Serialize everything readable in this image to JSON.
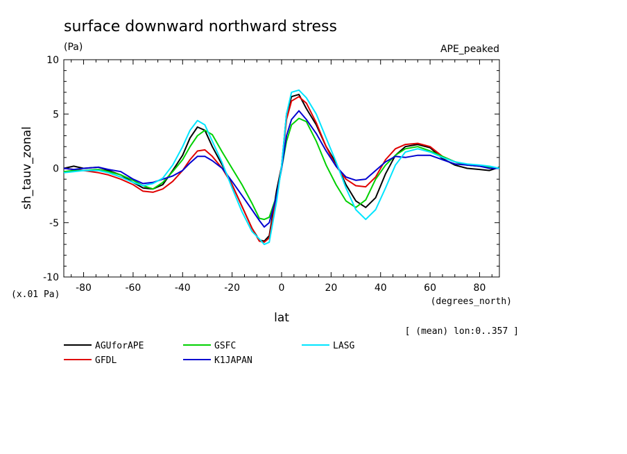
{
  "chart_data": {
    "type": "line",
    "title": "surface downward northward stress",
    "units": "(Pa)",
    "experiment": "APE_peaked",
    "ylabel": "sh_tauv_zonal",
    "xlabel": "lat",
    "x_unit_label": "(degrees_north)",
    "y_scale_note": "(x.01 Pa)",
    "averaging_note": "[ (mean) lon:0..357 ]",
    "xlim": [
      -88,
      88
    ],
    "ylim": [
      -10,
      10
    ],
    "x_ticks": [
      -80,
      -60,
      -40,
      -20,
      0,
      20,
      40,
      60,
      80
    ],
    "x_tick_labels": [
      "-80",
      "-60",
      "-40",
      "-20",
      "0",
      "20",
      "40",
      "60",
      "80"
    ],
    "y_ticks": [
      -10,
      -5,
      0,
      5,
      10
    ],
    "y_tick_labels": [
      "-10",
      "-5",
      "0",
      "5",
      "10"
    ],
    "legend_placement": "bottom",
    "series": [
      {
        "name": "AGUforAPE",
        "color": "#000000",
        "x": [
          -88,
          -84,
          -80,
          -74,
          -70,
          -65,
          -60,
          -56,
          -52,
          -48,
          -44,
          -40,
          -37,
          -34,
          -31,
          -28,
          -24,
          -20,
          -16,
          -12,
          -9,
          -7,
          -5,
          -2,
          0,
          2,
          4,
          7,
          10,
          14,
          18,
          22,
          26,
          30,
          34,
          38,
          42,
          46,
          50,
          55,
          60,
          65,
          70,
          75,
          80,
          84,
          88
        ],
        "y": [
          0,
          0.2,
          0,
          0.1,
          -0.2,
          -0.6,
          -1.3,
          -1.8,
          -1.9,
          -1.5,
          -0.2,
          1.2,
          2.8,
          3.8,
          3.5,
          2.0,
          0.3,
          -1.5,
          -3.5,
          -5.5,
          -6.6,
          -6.7,
          -6.2,
          -2.0,
          0.2,
          5.0,
          6.6,
          6.8,
          5.5,
          4.0,
          2.0,
          0.5,
          -1.5,
          -3.0,
          -3.6,
          -2.7,
          -0.5,
          1.2,
          2.0,
          2.2,
          1.9,
          0.9,
          0.3,
          0,
          -0.1,
          -0.2,
          0.1
        ]
      },
      {
        "name": "GFDL",
        "color": "#e00000",
        "x": [
          -88,
          -84,
          -80,
          -74,
          -70,
          -65,
          -60,
          -56,
          -52,
          -48,
          -44,
          -40,
          -37,
          -34,
          -31,
          -28,
          -24,
          -20,
          -16,
          -12,
          -9,
          -7,
          -5,
          -2,
          0,
          2,
          4,
          7,
          10,
          14,
          18,
          22,
          26,
          30,
          34,
          38,
          42,
          46,
          50,
          55,
          60,
          65,
          70,
          75,
          80,
          84,
          88
        ],
        "y": [
          0,
          -0.1,
          -0.2,
          -0.4,
          -0.6,
          -1.0,
          -1.5,
          -2.1,
          -2.2,
          -1.9,
          -1.2,
          -0.2,
          0.8,
          1.6,
          1.7,
          1.1,
          0,
          -1.5,
          -3.5,
          -5.5,
          -6.7,
          -6.8,
          -6.4,
          -2.5,
          0.2,
          4.5,
          6.2,
          6.6,
          6.0,
          4.2,
          2.0,
          0.2,
          -1.0,
          -1.6,
          -1.7,
          -0.8,
          0.8,
          1.8,
          2.2,
          2.3,
          2.0,
          1.1,
          0.6,
          0.3,
          0.2,
          0.1,
          0
        ]
      },
      {
        "name": "GSFC",
        "color": "#00d000",
        "x": [
          -88,
          -84,
          -80,
          -74,
          -70,
          -65,
          -60,
          -56,
          -52,
          -48,
          -44,
          -40,
          -37,
          -34,
          -31,
          -28,
          -24,
          -20,
          -16,
          -12,
          -9,
          -7,
          -5,
          -2,
          0,
          2,
          4,
          7,
          10,
          14,
          18,
          22,
          26,
          30,
          34,
          38,
          42,
          46,
          50,
          55,
          60,
          65,
          70,
          75,
          80,
          84,
          88
        ],
        "y": [
          -0.3,
          -0.2,
          -0.2,
          -0.1,
          -0.3,
          -0.6,
          -1.1,
          -1.6,
          -1.9,
          -1.3,
          -0.3,
          0.8,
          2.0,
          3.0,
          3.5,
          3.1,
          1.5,
          0,
          -1.5,
          -3.2,
          -4.6,
          -4.7,
          -4.5,
          -2.5,
          0,
          2.5,
          4.0,
          4.6,
          4.3,
          2.5,
          0.3,
          -1.5,
          -3.0,
          -3.6,
          -2.9,
          -1.0,
          0.3,
          1.2,
          1.8,
          2.0,
          1.6,
          1.1,
          0.6,
          0.3,
          0.2,
          0.1,
          0
        ]
      },
      {
        "name": "K1JAPAN",
        "color": "#0000d0",
        "x": [
          -88,
          -84,
          -80,
          -74,
          -70,
          -65,
          -60,
          -56,
          -52,
          -48,
          -44,
          -40,
          -37,
          -34,
          -31,
          -28,
          -24,
          -20,
          -16,
          -12,
          -9,
          -7,
          -5,
          -2,
          0,
          2,
          4,
          7,
          10,
          14,
          18,
          22,
          26,
          30,
          34,
          38,
          42,
          46,
          50,
          55,
          60,
          65,
          70,
          75,
          80,
          84,
          88
        ],
        "y": [
          0,
          -0.1,
          0,
          0.1,
          -0.1,
          -0.3,
          -1.0,
          -1.4,
          -1.3,
          -1.0,
          -0.7,
          -0.2,
          0.5,
          1.1,
          1.1,
          0.7,
          0,
          -1.2,
          -2.5,
          -3.8,
          -4.8,
          -5.4,
          -5.0,
          -2.5,
          0,
          3.0,
          4.5,
          5.3,
          4.5,
          3.2,
          1.6,
          0.2,
          -0.8,
          -1.1,
          -1.0,
          -0.2,
          0.6,
          1.1,
          1.0,
          1.2,
          1.2,
          0.8,
          0.4,
          0.3,
          0.2,
          0,
          0
        ]
      },
      {
        "name": "LASG",
        "color": "#00e5ff",
        "x": [
          -88,
          -84,
          -80,
          -74,
          -70,
          -65,
          -60,
          -56,
          -52,
          -48,
          -44,
          -40,
          -37,
          -34,
          -31,
          -28,
          -24,
          -20,
          -16,
          -12,
          -9,
          -7,
          -5,
          -2,
          0,
          2,
          4,
          7,
          10,
          14,
          18,
          22,
          26,
          30,
          34,
          38,
          42,
          46,
          50,
          55,
          60,
          65,
          70,
          75,
          80,
          84,
          88
        ],
        "y": [
          -0.4,
          -0.3,
          -0.2,
          -0.2,
          -0.4,
          -0.8,
          -1.3,
          -1.6,
          -1.4,
          -0.9,
          0.3,
          2.0,
          3.5,
          4.4,
          4.0,
          2.5,
          0.5,
          -1.8,
          -4.0,
          -5.8,
          -6.5,
          -7.0,
          -6.8,
          -3.0,
          0.2,
          5.0,
          7.0,
          7.2,
          6.5,
          5.0,
          2.8,
          0.6,
          -1.8,
          -3.8,
          -4.7,
          -3.8,
          -1.8,
          0.3,
          1.5,
          1.8,
          1.5,
          1.0,
          0.6,
          0.4,
          0.3,
          0.2,
          0
        ]
      }
    ]
  }
}
